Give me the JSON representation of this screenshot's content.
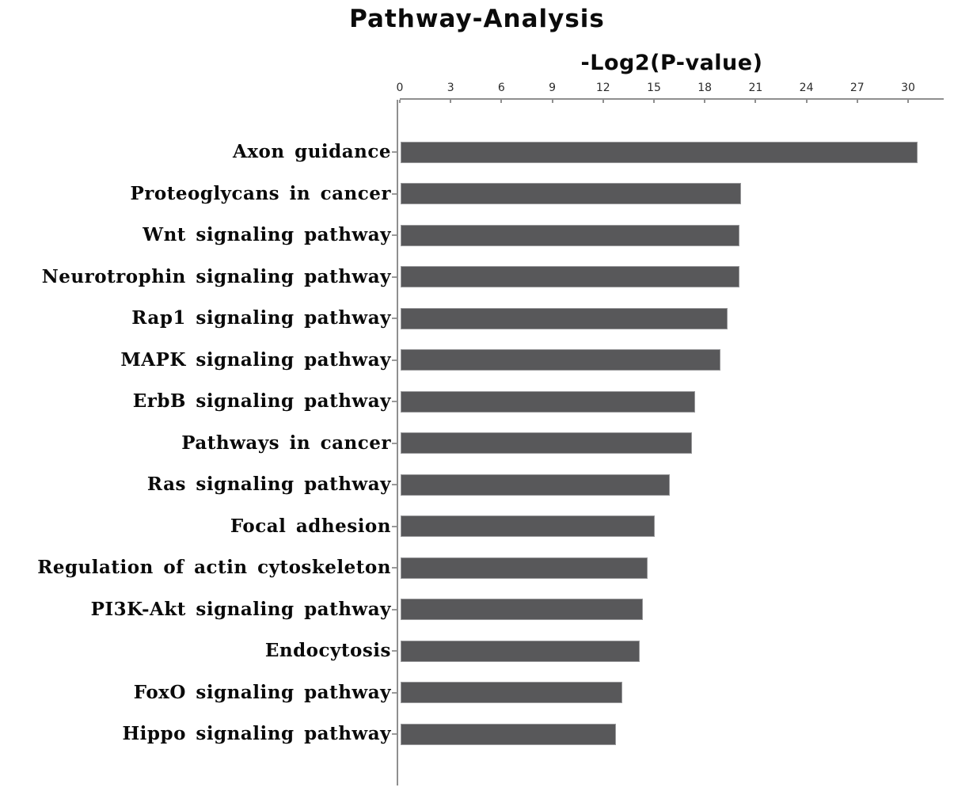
{
  "page_title": "Pathway-Analysis",
  "chart_data": {
    "type": "bar",
    "orientation": "horizontal",
    "title": "Pathway-Analysis",
    "xlabel": "-Log2(P-value)",
    "xlabel_position": "top",
    "categories": [
      "Axon guidance",
      "Proteoglycans in cancer",
      "Wnt signaling pathway",
      "Neurotrophin signaling pathway",
      "Rap1 signaling pathway",
      "MAPK signaling pathway",
      "ErbB signaling pathway",
      "Pathways in cancer",
      "Ras signaling pathway",
      "Focal adhesion",
      "Regulation of actin cytoskeleton",
      "PI3K-Akt signaling pathway",
      "Endocytosis",
      "FoxO signaling pathway",
      "Hippo signaling pathway"
    ],
    "values": [
      30.5,
      20.1,
      20.0,
      20.0,
      19.3,
      18.9,
      17.4,
      17.2,
      15.9,
      15.0,
      14.6,
      14.3,
      14.1,
      13.1,
      12.7
    ],
    "xticks": [
      0,
      3,
      6,
      9,
      12,
      15,
      18,
      21,
      24,
      27,
      30
    ],
    "xlim": [
      0,
      32
    ],
    "grid": false,
    "legend": false,
    "bar_color": "#58585a",
    "axis_color": "#8f8f8f",
    "text_color": "#0a0a0a"
  }
}
